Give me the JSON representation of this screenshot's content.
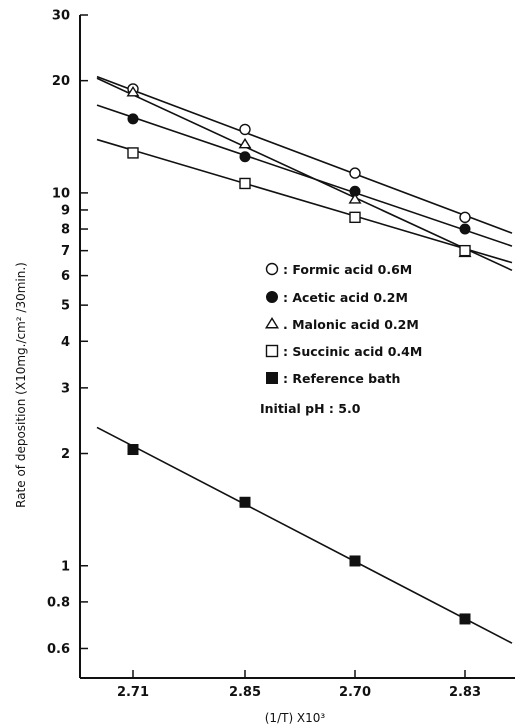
{
  "chart_data": {
    "type": "scatter",
    "title": "",
    "xlabel": "(1/T) X10³",
    "ylabel": "Rate of deposition (X10mg./cm² /30min.)",
    "y_scale": "log",
    "ylim": [
      0.5,
      30
    ],
    "x_tick_labels": [
      "2.71",
      "2.85",
      "2.70",
      "2.83"
    ],
    "y_ticks": [
      {
        "value": 30,
        "label": "30"
      },
      {
        "value": 20,
        "label": "20"
      },
      {
        "value": 10,
        "label": "10"
      },
      {
        "value": 9,
        "label": "9"
      },
      {
        "value": 8,
        "label": "8"
      },
      {
        "value": 7,
        "label": "7"
      },
      {
        "value": 6,
        "label": "6"
      },
      {
        "value": 5,
        "label": "5"
      },
      {
        "value": 4,
        "label": "4"
      },
      {
        "value": 3,
        "label": "3"
      },
      {
        "value": 2,
        "label": "2"
      },
      {
        "value": 1,
        "label": "1"
      },
      {
        "value": 0.8,
        "label": "0.8"
      },
      {
        "value": 0.6,
        "label": "0.6"
      }
    ],
    "grid": false,
    "legend_placement": "center-right",
    "note": "Initial pH : 5.0",
    "series": [
      {
        "name": "Formic acid 0.6M",
        "legend_label": ": Formic acid 0.6M",
        "marker": "open-circle",
        "values": [
          19,
          14.8,
          11.3,
          8.6
        ],
        "fit_start": 20.5,
        "fit_end": 7.8
      },
      {
        "name": "Acetic acid 0.2M",
        "legend_label": ": Acetic acid 0.2M",
        "marker": "filled-circle",
        "values": [
          15.8,
          12.5,
          10.1,
          8.0
        ],
        "fit_start": 17.2,
        "fit_end": 7.2
      },
      {
        "name": "Malonic acid 0.2M",
        "legend_label": ". Malonic acid 0.2M",
        "marker": "open-triangle",
        "values": [
          18.6,
          13.5,
          9.6,
          6.9
        ],
        "fit_start": 20.3,
        "fit_end": 6.2
      },
      {
        "name": "Succinic acid 0.4M",
        "legend_label": ": Succinic acid 0.4M",
        "marker": "open-square",
        "values": [
          12.8,
          10.6,
          8.6,
          7.0
        ],
        "fit_start": 13.9,
        "fit_end": 6.5
      },
      {
        "name": "Reference bath",
        "legend_label": ": Reference bath",
        "marker": "filled-square",
        "values": [
          2.05,
          1.48,
          1.03,
          0.72
        ],
        "fit_start": 2.35,
        "fit_end": 0.62
      }
    ]
  }
}
